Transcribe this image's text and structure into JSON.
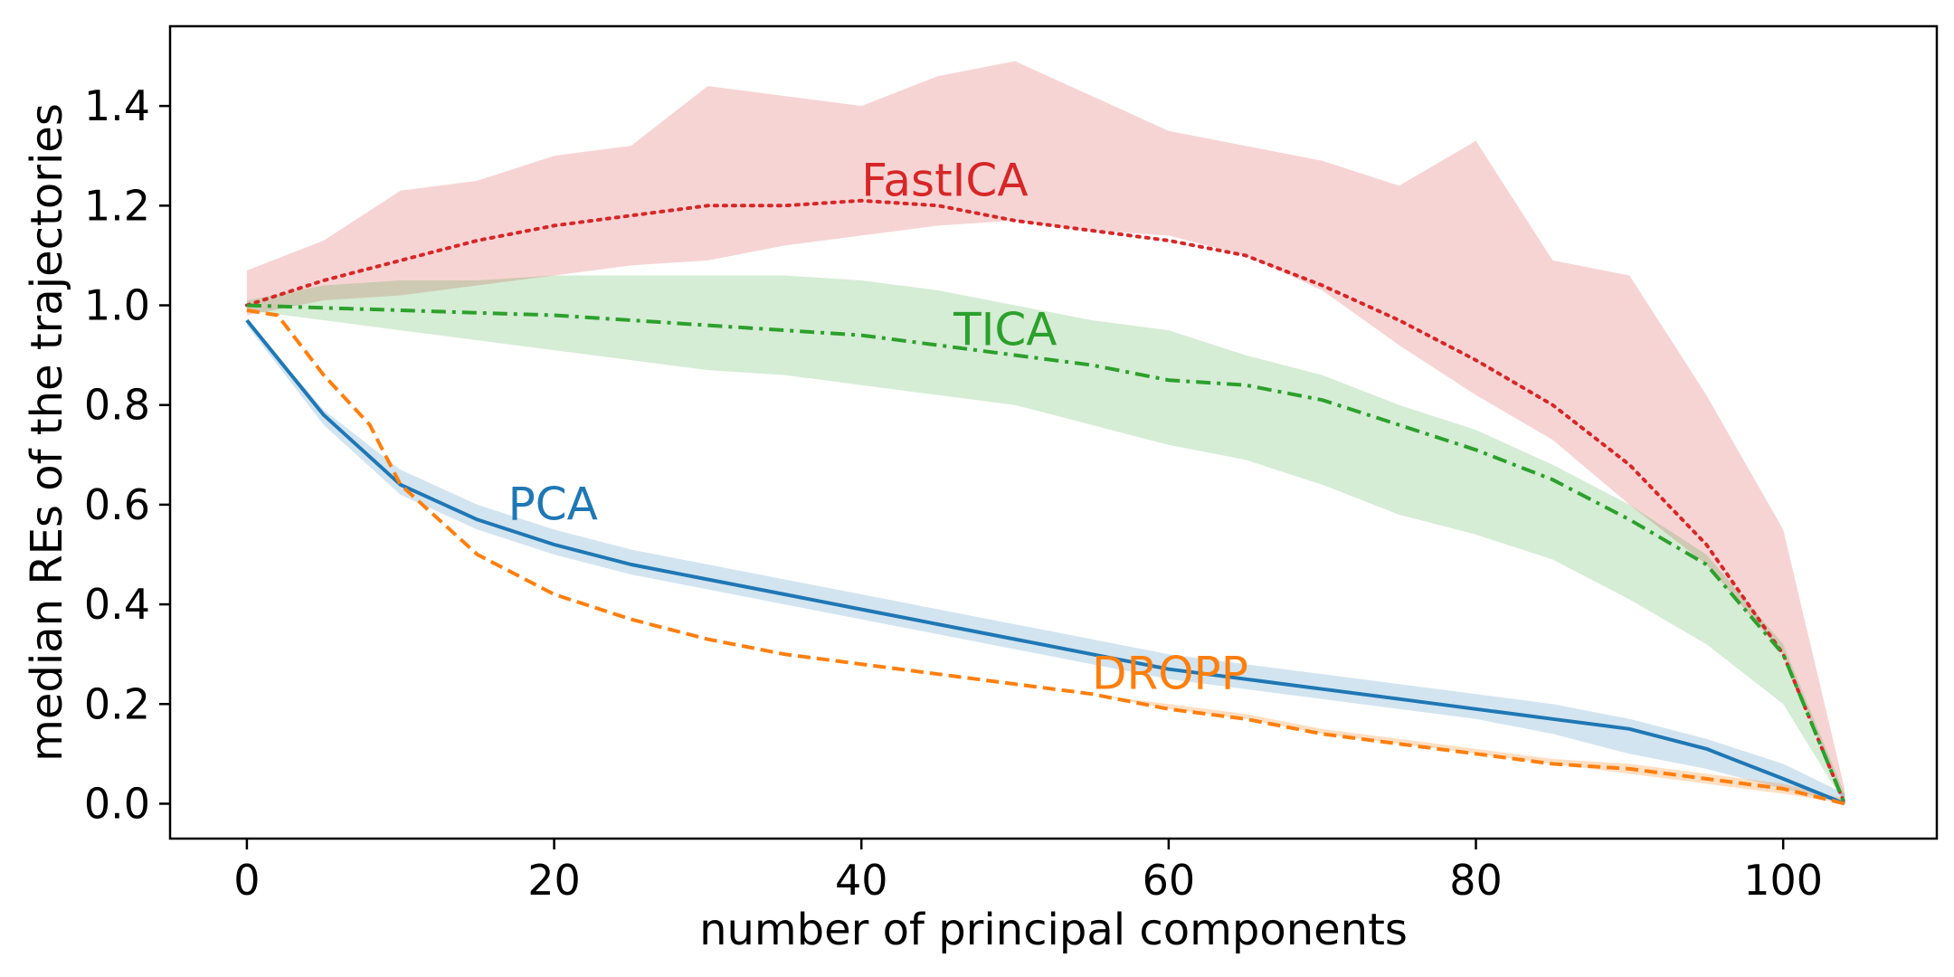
{
  "chart_data": {
    "type": "line",
    "title": "",
    "xlabel": "number of principal components",
    "ylabel": "median REs of the trajectories",
    "xlim": [
      -5,
      110
    ],
    "ylim": [
      -0.07,
      1.56
    ],
    "xticks": [
      0,
      20,
      40,
      60,
      80,
      100
    ],
    "xtick_labels": [
      "0",
      "20",
      "40",
      "60",
      "80",
      "100"
    ],
    "yticks": [
      0.0,
      0.2,
      0.4,
      0.6,
      0.8,
      1.0,
      1.2,
      1.4
    ],
    "ytick_labels": [
      "0.0",
      "0.2",
      "0.4",
      "0.6",
      "0.8",
      "1.0",
      "1.2",
      "1.4"
    ],
    "grid": false,
    "legend": "inline labels",
    "series": [
      {
        "name": "FastICA",
        "color": "#d62728",
        "linestyle": "dotted",
        "x": [
          0,
          5,
          10,
          15,
          20,
          25,
          30,
          35,
          40,
          45,
          50,
          55,
          60,
          65,
          70,
          75,
          80,
          85,
          90,
          95,
          100,
          104
        ],
        "values": [
          1.0,
          1.05,
          1.09,
          1.13,
          1.16,
          1.18,
          1.2,
          1.2,
          1.21,
          1.2,
          1.17,
          1.15,
          1.13,
          1.1,
          1.04,
          0.97,
          0.89,
          0.8,
          0.68,
          0.52,
          0.3,
          0.0
        ],
        "band_upper": [
          1.07,
          1.13,
          1.23,
          1.25,
          1.3,
          1.32,
          1.44,
          1.42,
          1.4,
          1.46,
          1.49,
          1.42,
          1.35,
          1.32,
          1.29,
          1.24,
          1.33,
          1.09,
          1.06,
          0.82,
          0.55,
          0.03
        ],
        "band_lower": [
          0.98,
          1.01,
          1.02,
          1.04,
          1.06,
          1.08,
          1.09,
          1.12,
          1.14,
          1.16,
          1.17,
          1.15,
          1.14,
          1.1,
          1.03,
          0.92,
          0.82,
          0.73,
          0.6,
          0.48,
          0.3,
          0.0
        ]
      },
      {
        "name": "TICA",
        "color": "#2ca02c",
        "linestyle": "dashdot",
        "x": [
          0,
          5,
          10,
          15,
          20,
          25,
          30,
          35,
          40,
          45,
          50,
          55,
          60,
          65,
          70,
          75,
          80,
          85,
          90,
          95,
          100,
          104
        ],
        "values": [
          1.0,
          0.995,
          0.99,
          0.985,
          0.98,
          0.97,
          0.96,
          0.95,
          0.94,
          0.92,
          0.9,
          0.88,
          0.85,
          0.84,
          0.81,
          0.76,
          0.71,
          0.65,
          0.57,
          0.48,
          0.3,
          0.0
        ],
        "band_upper": [
          1.01,
          1.04,
          1.05,
          1.05,
          1.06,
          1.06,
          1.06,
          1.06,
          1.05,
          1.03,
          1.0,
          0.97,
          0.95,
          0.9,
          0.86,
          0.8,
          0.75,
          0.68,
          0.6,
          0.5,
          0.32,
          0.02
        ],
        "band_lower": [
          0.99,
          0.97,
          0.95,
          0.93,
          0.91,
          0.89,
          0.87,
          0.86,
          0.84,
          0.82,
          0.8,
          0.76,
          0.72,
          0.69,
          0.64,
          0.58,
          0.54,
          0.49,
          0.41,
          0.32,
          0.2,
          0.0
        ]
      },
      {
        "name": "PCA",
        "color": "#1f77b4",
        "linestyle": "solid",
        "x": [
          0,
          5,
          10,
          15,
          20,
          25,
          30,
          35,
          40,
          45,
          50,
          55,
          60,
          65,
          70,
          75,
          80,
          85,
          90,
          95,
          100,
          104
        ],
        "values": [
          0.97,
          0.78,
          0.64,
          0.57,
          0.52,
          0.48,
          0.45,
          0.42,
          0.39,
          0.36,
          0.33,
          0.3,
          0.27,
          0.25,
          0.23,
          0.21,
          0.19,
          0.17,
          0.15,
          0.11,
          0.05,
          0.0
        ],
        "band_upper": [
          0.97,
          0.79,
          0.67,
          0.6,
          0.55,
          0.51,
          0.48,
          0.45,
          0.42,
          0.39,
          0.36,
          0.33,
          0.3,
          0.28,
          0.26,
          0.24,
          0.22,
          0.2,
          0.17,
          0.13,
          0.08,
          0.02
        ],
        "band_lower": [
          0.96,
          0.76,
          0.62,
          0.55,
          0.5,
          0.46,
          0.43,
          0.4,
          0.37,
          0.34,
          0.31,
          0.28,
          0.25,
          0.23,
          0.21,
          0.19,
          0.17,
          0.14,
          0.1,
          0.07,
          0.03,
          0.0
        ]
      },
      {
        "name": "DROPP",
        "color": "#ff7f0e",
        "linestyle": "dashed",
        "x": [
          0,
          2,
          5,
          8,
          10,
          15,
          20,
          25,
          30,
          35,
          40,
          45,
          50,
          55,
          60,
          65,
          70,
          75,
          80,
          85,
          90,
          95,
          100,
          104
        ],
        "values": [
          0.99,
          0.98,
          0.86,
          0.76,
          0.64,
          0.5,
          0.42,
          0.37,
          0.33,
          0.3,
          0.28,
          0.26,
          0.24,
          0.22,
          0.19,
          0.17,
          0.14,
          0.12,
          0.1,
          0.08,
          0.07,
          0.05,
          0.03,
          0.0
        ],
        "band_upper": [
          0.99,
          0.98,
          0.86,
          0.76,
          0.64,
          0.5,
          0.42,
          0.37,
          0.33,
          0.3,
          0.28,
          0.26,
          0.24,
          0.22,
          0.2,
          0.18,
          0.15,
          0.13,
          0.11,
          0.09,
          0.08,
          0.06,
          0.04,
          0.01
        ],
        "band_lower": [
          0.99,
          0.98,
          0.86,
          0.76,
          0.64,
          0.5,
          0.42,
          0.37,
          0.33,
          0.3,
          0.28,
          0.26,
          0.24,
          0.22,
          0.19,
          0.17,
          0.14,
          0.12,
          0.1,
          0.08,
          0.06,
          0.04,
          0.02,
          0.0
        ]
      }
    ],
    "annotations": [
      {
        "text": "FastICA",
        "x": 40,
        "y": 1.22,
        "color": "#d62728"
      },
      {
        "text": "TICA",
        "x": 46,
        "y": 0.92,
        "color": "#2ca02c"
      },
      {
        "text": "PCA",
        "x": 17,
        "y": 0.57,
        "color": "#1f77b4"
      },
      {
        "text": "DROPP",
        "x": 55,
        "y": 0.23,
        "color": "#ff7f0e"
      }
    ]
  }
}
